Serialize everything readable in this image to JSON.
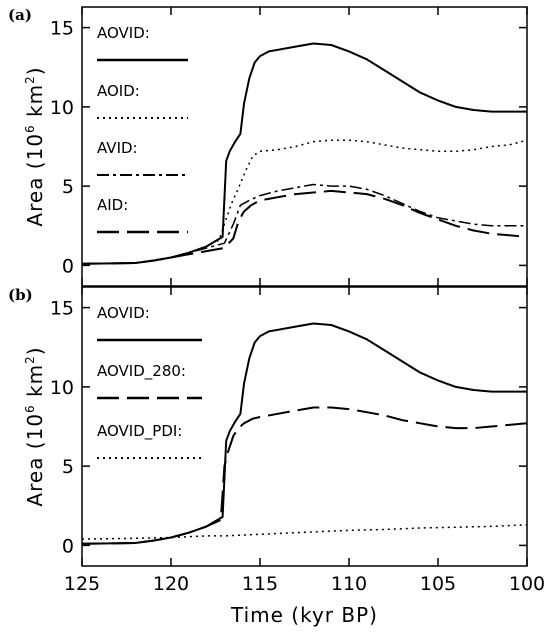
{
  "chart_data": [
    {
      "panel": "(a)",
      "type": "line",
      "xlabel": "",
      "ylabel": "Area (10⁶ km²)",
      "ylabel_parts": {
        "main": "Area  (10",
        "exp": "6",
        "unit": " km",
        "unit_exp": "2",
        "close": ")"
      },
      "xlim": [
        125,
        100
      ],
      "ylim": [
        -1.3,
        16.3
      ],
      "yticks": [
        0,
        5,
        10,
        15
      ],
      "ytick_labels": [
        "0",
        "5",
        "10",
        "15"
      ],
      "legend_position": "top-left",
      "series": [
        {
          "name": "AOVID:",
          "style": "solid",
          "width": 2.0,
          "points": [
            [
              125,
              0.1
            ],
            [
              122,
              0.15
            ],
            [
              121,
              0.3
            ],
            [
              120,
              0.5
            ],
            [
              119,
              0.8
            ],
            [
              118,
              1.2
            ],
            [
              117.4,
              1.6
            ],
            [
              117.1,
              1.8
            ],
            [
              116.9,
              6.6
            ],
            [
              116.7,
              7.2
            ],
            [
              116.4,
              7.8
            ],
            [
              116.1,
              8.3
            ],
            [
              115.9,
              10.2
            ],
            [
              115.6,
              11.8
            ],
            [
              115.3,
              12.8
            ],
            [
              115,
              13.2
            ],
            [
              114.5,
              13.5
            ],
            [
              114,
              13.6
            ],
            [
              113,
              13.8
            ],
            [
              112,
              14.0
            ],
            [
              111,
              13.9
            ],
            [
              110,
              13.5
            ],
            [
              109,
              13.0
            ],
            [
              108,
              12.3
            ],
            [
              107,
              11.6
            ],
            [
              106,
              10.9
            ],
            [
              105,
              10.4
            ],
            [
              104,
              10.0
            ],
            [
              103,
              9.8
            ],
            [
              102,
              9.7
            ],
            [
              101,
              9.7
            ],
            [
              100,
              9.7
            ]
          ]
        },
        {
          "name": "AOID:",
          "style": "dotted",
          "width": 1.5,
          "points": [
            [
              125,
              0.1
            ],
            [
              122,
              0.15
            ],
            [
              121,
              0.3
            ],
            [
              120,
              0.5
            ],
            [
              119,
              0.8
            ],
            [
              118,
              1.2
            ],
            [
              117.3,
              1.6
            ],
            [
              117,
              2.6
            ],
            [
              116.6,
              3.9
            ],
            [
              116.2,
              4.9
            ],
            [
              115.8,
              6.0
            ],
            [
              115.4,
              6.9
            ],
            [
              115,
              7.2
            ],
            [
              114,
              7.3
            ],
            [
              113,
              7.5
            ],
            [
              112,
              7.8
            ],
            [
              111,
              7.9
            ],
            [
              110,
              7.9
            ],
            [
              109,
              7.8
            ],
            [
              108,
              7.6
            ],
            [
              107,
              7.4
            ],
            [
              106,
              7.3
            ],
            [
              105,
              7.2
            ],
            [
              104,
              7.2
            ],
            [
              103,
              7.3
            ],
            [
              102,
              7.5
            ],
            [
              101,
              7.6
            ],
            [
              100,
              7.9
            ]
          ]
        },
        {
          "name": "AVID:",
          "style": "dashdot",
          "width": 1.5,
          "points": [
            [
              125,
              0.1
            ],
            [
              122,
              0.15
            ],
            [
              121,
              0.3
            ],
            [
              120,
              0.5
            ],
            [
              119,
              0.8
            ],
            [
              118,
              1.1
            ],
            [
              117,
              1.4
            ],
            [
              116.5,
              2.6
            ],
            [
              116.1,
              3.8
            ],
            [
              115.6,
              4.1
            ],
            [
              115,
              4.4
            ],
            [
              114,
              4.7
            ],
            [
              113,
              4.9
            ],
            [
              112,
              5.1
            ],
            [
              111,
              5.0
            ],
            [
              110,
              5.0
            ],
            [
              109,
              4.8
            ],
            [
              108,
              4.4
            ],
            [
              107,
              3.9
            ],
            [
              106,
              3.4
            ],
            [
              105,
              3.0
            ],
            [
              104,
              2.8
            ],
            [
              103,
              2.6
            ],
            [
              102,
              2.5
            ],
            [
              101,
              2.5
            ],
            [
              100,
              2.5
            ]
          ]
        },
        {
          "name": "AID:",
          "style": "longdash",
          "width": 2.0,
          "points": [
            [
              125,
              0.1
            ],
            [
              122,
              0.15
            ],
            [
              121,
              0.3
            ],
            [
              120,
              0.5
            ],
            [
              119,
              0.7
            ],
            [
              118,
              0.9
            ],
            [
              117,
              1.1
            ],
            [
              116.5,
              1.7
            ],
            [
              116.2,
              2.8
            ],
            [
              115.9,
              3.4
            ],
            [
              115.5,
              3.8
            ],
            [
              115,
              4.1
            ],
            [
              114,
              4.3
            ],
            [
              113,
              4.5
            ],
            [
              112,
              4.6
            ],
            [
              111,
              4.7
            ],
            [
              110,
              4.6
            ],
            [
              109,
              4.5
            ],
            [
              108,
              4.2
            ],
            [
              107,
              3.8
            ],
            [
              106,
              3.3
            ],
            [
              105,
              2.9
            ],
            [
              104,
              2.5
            ],
            [
              103,
              2.2
            ],
            [
              102,
              2.0
            ],
            [
              101,
              1.9
            ],
            [
              100,
              1.8
            ]
          ]
        }
      ]
    },
    {
      "panel": "(b)",
      "type": "line",
      "xlabel": "Time (kyr BP)",
      "ylabel": "Area (10⁶ km²)",
      "ylabel_parts": {
        "main": "Area  (10",
        "exp": "6",
        "unit": " km",
        "unit_exp": "2",
        "close": ")"
      },
      "xlim": [
        125,
        100
      ],
      "ylim": [
        -1.3,
        16.3
      ],
      "xticks": [
        125,
        120,
        115,
        110,
        105,
        100
      ],
      "xtick_labels": [
        "125",
        "120",
        "115",
        "110",
        "105",
        "100"
      ],
      "yticks": [
        0,
        5,
        10,
        15
      ],
      "ytick_labels": [
        "0",
        "5",
        "10",
        "15"
      ],
      "legend_position": "top-left",
      "series": [
        {
          "name": "AOVID:",
          "style": "solid",
          "width": 2.0,
          "points": [
            [
              125,
              0.1
            ],
            [
              122,
              0.15
            ],
            [
              121,
              0.3
            ],
            [
              120,
              0.5
            ],
            [
              119,
              0.8
            ],
            [
              118,
              1.2
            ],
            [
              117.4,
              1.6
            ],
            [
              117.1,
              1.8
            ],
            [
              116.9,
              6.6
            ],
            [
              116.7,
              7.2
            ],
            [
              116.4,
              7.8
            ],
            [
              116.1,
              8.3
            ],
            [
              115.9,
              10.2
            ],
            [
              115.6,
              11.8
            ],
            [
              115.3,
              12.8
            ],
            [
              115,
              13.2
            ],
            [
              114.5,
              13.5
            ],
            [
              114,
              13.6
            ],
            [
              113,
              13.8
            ],
            [
              112,
              14.0
            ],
            [
              111,
              13.9
            ],
            [
              110,
              13.5
            ],
            [
              109,
              13.0
            ],
            [
              108,
              12.3
            ],
            [
              107,
              11.6
            ],
            [
              106,
              10.9
            ],
            [
              105,
              10.4
            ],
            [
              104,
              10.0
            ],
            [
              103,
              9.8
            ],
            [
              102,
              9.7
            ],
            [
              101,
              9.7
            ],
            [
              100,
              9.7
            ]
          ]
        },
        {
          "name": "AOVID_280:",
          "style": "longdash",
          "width": 2.0,
          "points": [
            [
              125,
              0.1
            ],
            [
              122,
              0.15
            ],
            [
              121,
              0.3
            ],
            [
              120,
              0.5
            ],
            [
              119,
              0.8
            ],
            [
              118,
              1.2
            ],
            [
              117.2,
              1.6
            ],
            [
              117,
              5.0
            ],
            [
              116.8,
              5.9
            ],
            [
              116.5,
              6.9
            ],
            [
              116.2,
              7.4
            ],
            [
              115.9,
              7.7
            ],
            [
              115.4,
              8.0
            ],
            [
              115,
              8.1
            ],
            [
              114,
              8.3
            ],
            [
              113,
              8.5
            ],
            [
              112,
              8.7
            ],
            [
              111,
              8.7
            ],
            [
              110,
              8.6
            ],
            [
              109,
              8.4
            ],
            [
              108,
              8.2
            ],
            [
              107,
              7.9
            ],
            [
              106,
              7.7
            ],
            [
              105,
              7.5
            ],
            [
              104,
              7.4
            ],
            [
              103,
              7.4
            ],
            [
              102,
              7.5
            ],
            [
              101,
              7.6
            ],
            [
              100,
              7.7
            ]
          ]
        },
        {
          "name": "AOVID_PDI:",
          "style": "dotted",
          "width": 1.5,
          "points": [
            [
              125,
              0.4
            ],
            [
              122,
              0.45
            ],
            [
              120,
              0.5
            ],
            [
              119,
              0.55
            ],
            [
              118,
              0.6
            ],
            [
              117,
              0.6
            ],
            [
              116,
              0.65
            ],
            [
              115,
              0.7
            ],
            [
              114,
              0.75
            ],
            [
              113,
              0.8
            ],
            [
              112,
              0.85
            ],
            [
              111,
              0.9
            ],
            [
              110,
              0.95
            ],
            [
              108,
              1.0
            ],
            [
              106,
              1.1
            ],
            [
              104,
              1.15
            ],
            [
              102,
              1.2
            ],
            [
              100,
              1.3
            ]
          ]
        }
      ]
    }
  ]
}
